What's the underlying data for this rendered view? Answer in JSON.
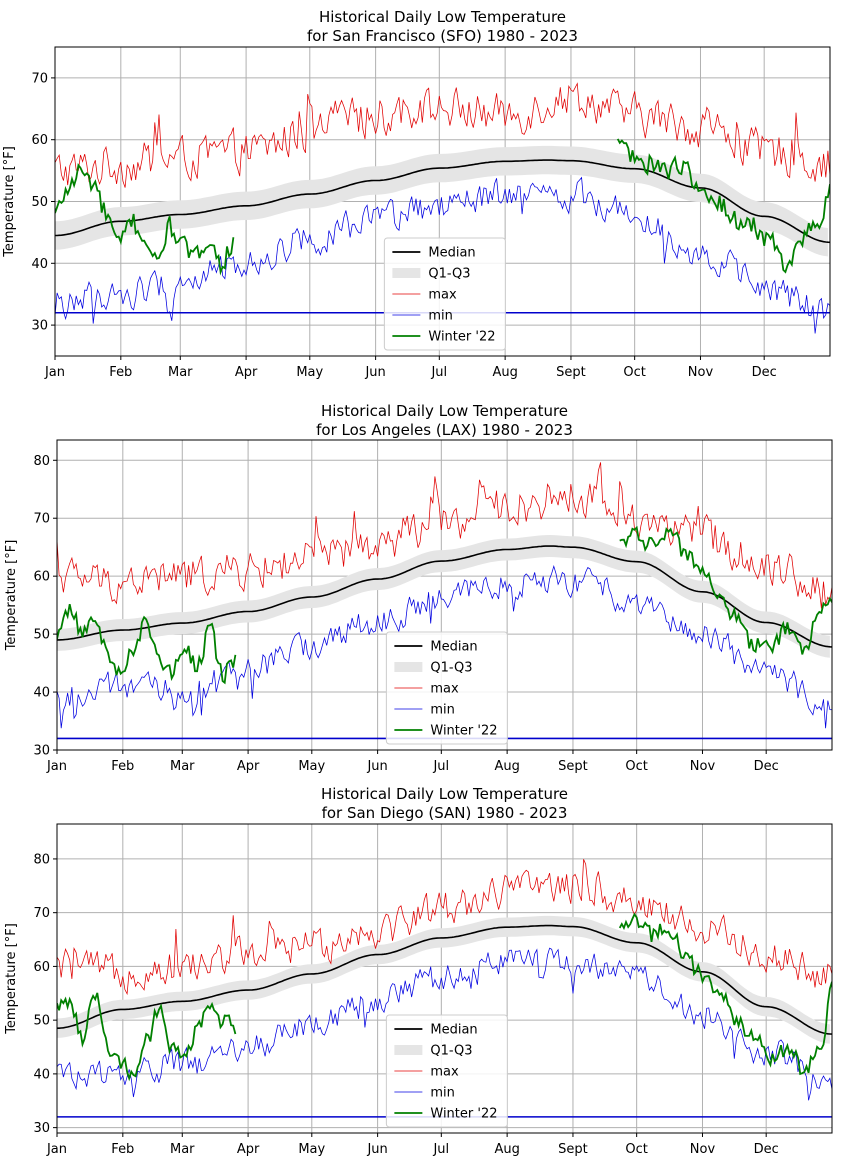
{
  "chart_data": [
    {
      "type": "line",
      "title": "Historical Daily Low Temperature",
      "subtitle": "for San Francisco (SFO) 1980 - 2023",
      "xlabel": "",
      "ylabel": "Temperature [°F]",
      "ylim": [
        25,
        75
      ],
      "yticks": [
        30,
        40,
        50,
        60,
        70
      ],
      "xlim": [
        0,
        365
      ],
      "months": [
        "Jan",
        "Feb",
        "Mar",
        "Apr",
        "May",
        "Jun",
        "Jul",
        "Aug",
        "Sept",
        "Oct",
        "Nov",
        "Dec"
      ],
      "month_days": [
        0,
        31,
        59,
        90,
        120,
        151,
        181,
        212,
        243,
        273,
        304,
        334
      ],
      "grid": true,
      "legend": {
        "position": "lower-center",
        "entries": [
          "Median",
          "Q1-Q3",
          "max",
          "min",
          "Winter '22"
        ]
      },
      "freezing_line": 32,
      "median": {
        "x": [
          0,
          31,
          59,
          90,
          120,
          151,
          181,
          212,
          232,
          243,
          273,
          304,
          334,
          365
        ],
        "y": [
          44.5,
          46.8,
          47.9,
          49.3,
          51.2,
          53.4,
          55.4,
          56.5,
          56.7,
          56.6,
          55.3,
          52.2,
          47.6,
          43.4
        ]
      },
      "iqr_half_width": 2.3,
      "max": {
        "x": [
          0,
          31,
          59,
          90,
          120,
          151,
          181,
          212,
          243,
          273,
          304,
          334,
          365
        ],
        "y": [
          55,
          56,
          57,
          58,
          61,
          64,
          65,
          64,
          67,
          64,
          62,
          58,
          56
        ],
        "noise": 3.0
      },
      "min": {
        "x": [
          0,
          31,
          59,
          90,
          120,
          151,
          181,
          212,
          243,
          273,
          304,
          334,
          365
        ],
        "y": [
          34,
          35,
          37,
          40,
          44,
          47,
          49,
          51,
          51,
          48,
          42,
          36,
          32
        ],
        "noise": 2.2
      },
      "winter22": [
        {
          "x": [
            0,
            6,
            12,
            18,
            24,
            30,
            36,
            42,
            48,
            54,
            60,
            66,
            72,
            78,
            84
          ],
          "y": [
            48,
            52,
            55,
            53,
            48,
            43,
            47,
            44,
            40,
            46,
            43,
            41,
            44,
            40,
            43
          ]
        },
        {
          "x": [
            265,
            272,
            280,
            288,
            296,
            304,
            312,
            320,
            328,
            336,
            344,
            352,
            360,
            365
          ],
          "y": [
            60,
            57,
            56,
            55,
            56,
            52,
            50,
            47,
            46,
            44,
            40,
            44,
            47,
            52
          ]
        }
      ]
    },
    {
      "type": "line",
      "title": "Historical Daily Low Temperature",
      "subtitle": "for Los Angeles (LAX) 1980 - 2023",
      "xlabel": "",
      "ylabel": "Temperature [°F]",
      "ylim": [
        30,
        83.5
      ],
      "yticks": [
        30,
        40,
        50,
        60,
        70,
        80
      ],
      "xlim": [
        0,
        365
      ],
      "months": [
        "Jan",
        "Feb",
        "Mar",
        "Apr",
        "May",
        "Jun",
        "Jul",
        "Aug",
        "Sept",
        "Oct",
        "Nov",
        "Dec"
      ],
      "month_days": [
        0,
        31,
        59,
        90,
        120,
        151,
        181,
        212,
        243,
        273,
        304,
        334
      ],
      "grid": true,
      "legend": {
        "position": "lower-center",
        "entries": [
          "Median",
          "Q1-Q3",
          "max",
          "min",
          "Winter '22"
        ]
      },
      "freezing_line": 32,
      "median": {
        "x": [
          0,
          31,
          59,
          90,
          120,
          151,
          181,
          212,
          232,
          243,
          273,
          304,
          334,
          365
        ],
        "y": [
          49,
          50.7,
          51.9,
          53.9,
          56.4,
          59.5,
          62.6,
          64.6,
          65.2,
          65.0,
          62.5,
          57.3,
          52.0,
          47.8
        ]
      },
      "iqr_half_width": 1.9,
      "max": {
        "x": [
          0,
          31,
          59,
          90,
          120,
          151,
          181,
          212,
          243,
          273,
          304,
          334,
          365
        ],
        "y": [
          60,
          59,
          60,
          61,
          63,
          65,
          69,
          72,
          74,
          70,
          67,
          62,
          57
        ],
        "noise": 3.0
      },
      "min": {
        "x": [
          0,
          31,
          59,
          90,
          120,
          151,
          181,
          212,
          243,
          273,
          304,
          334,
          365
        ],
        "y": [
          39,
          41,
          40,
          44,
          48,
          52,
          56,
          59,
          59,
          56,
          50,
          43,
          38
        ],
        "noise": 2.2
      },
      "winter22": [
        {
          "x": [
            0,
            6,
            12,
            18,
            24,
            30,
            36,
            42,
            48,
            54,
            60,
            66,
            72,
            78,
            84
          ],
          "y": [
            49,
            54,
            50,
            53,
            46,
            43,
            47,
            52,
            46,
            43,
            48,
            44,
            51,
            43,
            45
          ]
        },
        {
          "x": [
            265,
            272,
            280,
            288,
            296,
            304,
            312,
            320,
            328,
            336,
            344,
            352,
            360,
            365
          ],
          "y": [
            66,
            67,
            65,
            68,
            64,
            62,
            56,
            53,
            48,
            48,
            51,
            47,
            54,
            55
          ]
        }
      ]
    },
    {
      "type": "line",
      "title": "Historical Daily Low Temperature",
      "subtitle": "for San Diego (SAN) 1980 - 2023",
      "xlabel": "",
      "ylabel": "Temperature [°F]",
      "ylim": [
        29,
        86.5
      ],
      "yticks": [
        30,
        40,
        50,
        60,
        70,
        80
      ],
      "xlim": [
        0,
        365
      ],
      "months": [
        "Jan",
        "Feb",
        "Mar",
        "Apr",
        "May",
        "Jun",
        "Jul",
        "Aug",
        "Sept",
        "Oct",
        "Nov",
        "Dec"
      ],
      "month_days": [
        0,
        31,
        59,
        90,
        120,
        151,
        181,
        212,
        243,
        273,
        304,
        334
      ],
      "grid": true,
      "legend": {
        "position": "lower-center",
        "entries": [
          "Median",
          "Q1-Q3",
          "max",
          "min",
          "Winter '22"
        ]
      },
      "freezing_line": 32,
      "median": {
        "x": [
          0,
          31,
          59,
          90,
          120,
          151,
          181,
          212,
          232,
          243,
          273,
          304,
          334,
          365
        ],
        "y": [
          48.5,
          52,
          53.5,
          55.6,
          58.6,
          62.2,
          65.3,
          67.3,
          67.6,
          67.4,
          64.4,
          59.0,
          52.5,
          47.4
        ]
      },
      "iqr_half_width": 1.8,
      "max": {
        "x": [
          0,
          31,
          59,
          90,
          120,
          151,
          181,
          212,
          243,
          273,
          304,
          334,
          365
        ],
        "y": [
          60,
          59,
          60,
          62,
          64,
          67,
          71,
          74,
          75,
          72,
          67,
          62,
          58
        ],
        "noise": 3.0
      },
      "min": {
        "x": [
          0,
          31,
          59,
          90,
          120,
          151,
          181,
          212,
          243,
          273,
          304,
          334,
          365
        ],
        "y": [
          40,
          40,
          42,
          45,
          49,
          54,
          58,
          61,
          61,
          58,
          51,
          44,
          39
        ],
        "noise": 2.2
      },
      "winter22": [
        {
          "x": [
            0,
            6,
            12,
            18,
            24,
            30,
            36,
            42,
            48,
            54,
            60,
            66,
            72,
            78,
            84
          ],
          "y": [
            53,
            54,
            47,
            55,
            45,
            42,
            40,
            46,
            52,
            45,
            43,
            48,
            53,
            50,
            49
          ]
        },
        {
          "x": [
            265,
            272,
            280,
            288,
            296,
            304,
            312,
            320,
            328,
            336,
            344,
            352,
            360,
            365
          ],
          "y": [
            67,
            69,
            66,
            67,
            62,
            58,
            55,
            50,
            47,
            43,
            45,
            41,
            44,
            57
          ]
        }
      ]
    }
  ],
  "colors": {
    "median": "#000000",
    "iqr": "#e5e5e5",
    "max": "#e00000",
    "min": "#0000e0",
    "winter": "#008000",
    "freezing": "#0000cc",
    "grid": "#b0b0b0"
  }
}
